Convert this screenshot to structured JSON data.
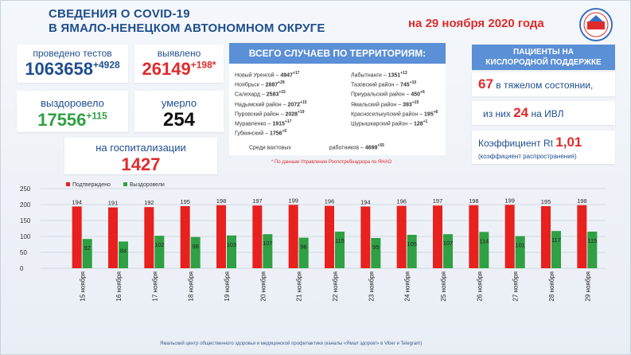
{
  "header": {
    "title_line1": "СВЕДЕНИЯ О COVID-19",
    "title_line2": "В ЯМАЛО-НЕНЕЦКОМ АВТОНОМНОМ ОКРУГЕ",
    "date": "на 29 ноября 2020 года"
  },
  "stats": {
    "tests_label": "проведено тестов",
    "tests_value": "1063658",
    "tests_delta": "+4928",
    "detected_label": "выявлено",
    "detected_value": "26149",
    "detected_delta": "+198*",
    "recovered_label": "выздоровело",
    "recovered_value": "17556",
    "recovered_delta": "+115",
    "died_label": "умерло",
    "died_value": "254",
    "hosp_label": "на госпитализации",
    "hosp_value": "1427"
  },
  "territories": {
    "heading": "ВСЕГО СЛУЧАЕВ ПО ТЕРРИТОРИЯМ:",
    "left": [
      {
        "name": "Новый Уренгой –",
        "value": "4947",
        "delta": "+17"
      },
      {
        "name": "Ноябрьск –",
        "value": "2887",
        "delta": "+29"
      },
      {
        "name": "Салехард –",
        "value": "2583",
        "delta": "+15"
      },
      {
        "name": "Надымский район –",
        "value": "2072",
        "delta": "+15"
      },
      {
        "name": "Пуровский район –",
        "value": "2028",
        "delta": "+19"
      },
      {
        "name": "Муравленко –",
        "value": "1915",
        "delta": "+17"
      },
      {
        "name": "Губкинский –",
        "value": "1756",
        "delta": "+5"
      }
    ],
    "right": [
      {
        "name": "Лабытнанги –",
        "value": "1351",
        "delta": "+13"
      },
      {
        "name": "Тазовский район –",
        "value": "745",
        "delta": "+10"
      },
      {
        "name": "Приуральский район –",
        "value": "450",
        "delta": "+6"
      },
      {
        "name": "Ямальский район –",
        "value": "393",
        "delta": "+15"
      },
      {
        "name": "Красноселькупский район –",
        "value": "195",
        "delta": "+6"
      },
      {
        "name": "Шурышкарский район –",
        "value": "128",
        "delta": "+1"
      }
    ],
    "shift_label_a": "Среди вахтовых",
    "shift_label_b": "работников –",
    "shift_value": "4699",
    "shift_delta": "+55",
    "note": "* По данным Управления  Роспотребнадзора по ЯНАО"
  },
  "patients": {
    "heading_line1": "ПАЦИЕНТЫ НА",
    "heading_line2": "КИСЛОРОДНОЙ ПОДДЕРЖКЕ",
    "severe_value": "67",
    "severe_label": "в тяжелом состоянии,",
    "ivl_prefix": "из них",
    "ivl_value": "24",
    "ivl_suffix": "на  ИВЛ",
    "rt_label": "Коэффициент Rt",
    "rt_value": "1,01",
    "rt_sub": "(коэффициент распространения)"
  },
  "chart_data": {
    "type": "bar",
    "categories": [
      "15 ноября",
      "16 ноября",
      "17 ноября",
      "18 ноября",
      "19 ноября",
      "20 ноября",
      "21 ноября",
      "22 ноября",
      "23 ноября",
      "24 ноября",
      "25 ноября",
      "26 ноября",
      "27 ноября",
      "28 ноября",
      "29 ноября"
    ],
    "series": [
      {
        "name": "Подтверждено",
        "values": [
          194,
          191,
          192,
          195,
          198,
          197,
          199,
          196,
          194,
          196,
          197,
          198,
          199,
          195,
          198
        ],
        "color": "#e8201e"
      },
      {
        "name": "Выздоровели",
        "values": [
          92,
          84,
          102,
          98,
          103,
          107,
          96,
          115,
          95,
          105,
          107,
          114,
          101,
          117,
          115
        ],
        "color": "#2fa043"
      }
    ],
    "yticks": [
      "250",
      "200",
      "150",
      "100",
      "50",
      "0"
    ],
    "ylim": [
      0,
      250
    ],
    "grid": true,
    "legend": "top-left"
  },
  "footer": "Ямальский центр общественного здоровья и медицинской профилактики (каналы «Ямал здоров!» в Viber  и Telegram)"
}
